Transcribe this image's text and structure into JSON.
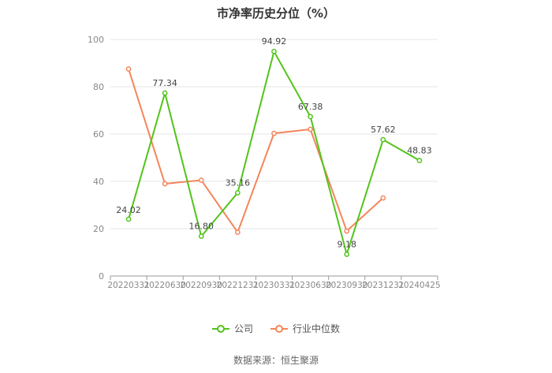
{
  "chart_data": {
    "type": "line",
    "title": "市净率历史分位（%）",
    "categories": [
      "20220331",
      "20220630",
      "20220930",
      "20221231",
      "20230331",
      "20230630",
      "20230930",
      "20231231",
      "20240425"
    ],
    "ylim": [
      0,
      100
    ],
    "yticks": [
      0,
      20,
      40,
      60,
      80,
      100
    ],
    "grid": true,
    "legend_position": "bottom",
    "series": [
      {
        "name": "公司",
        "color": "#52c41a",
        "values": [
          24.02,
          77.34,
          16.8,
          35.16,
          94.92,
          67.38,
          9.18,
          57.62,
          48.83
        ],
        "labels": [
          "24.02",
          "77.34",
          "16.80",
          "35.16",
          "94.92",
          "67.38",
          "9.18",
          "57.62",
          "48.83"
        ]
      },
      {
        "name": "行业中位数",
        "color": "#f5855b",
        "values": [
          87.5,
          39,
          40.5,
          18.5,
          60.3,
          62,
          19,
          33,
          null
        ]
      }
    ]
  },
  "source": "数据来源：恒生聚源"
}
